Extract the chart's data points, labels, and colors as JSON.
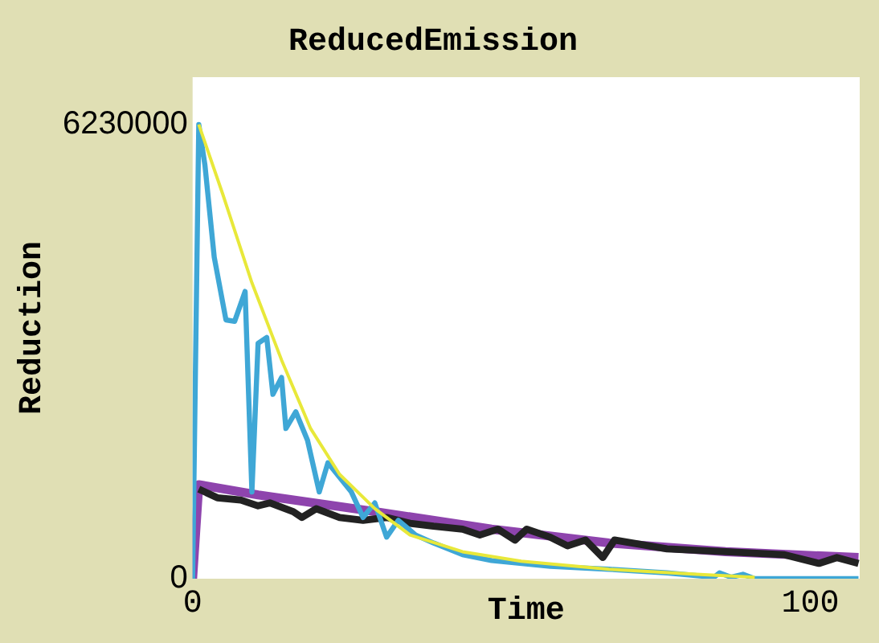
{
  "chart_data": {
    "type": "line",
    "title": "ReducedEmission",
    "xlabel": "Time",
    "ylabel": "Reduction",
    "xlim": [
      0,
      108
    ],
    "xticks": [
      0,
      100
    ],
    "ylim": [
      0,
      6880000
    ],
    "yticks": [
      0,
      6230000
    ],
    "grid": false,
    "legend": false,
    "marker": "none",
    "series": [
      {
        "color": "#e8e83a",
        "x": [
          1,
          4.9,
          9.6,
          14.4,
          19.1,
          23.8,
          29.5,
          35.2,
          43.7,
          53.2,
          67.4,
          81.6,
          91
        ],
        "values": [
          6230000,
          5270000,
          4060000,
          3000000,
          2060000,
          1430000,
          960000,
          600000,
          370000,
          240000,
          130000,
          60000,
          20000
        ]
      },
      {
        "color": "#3fa7d6",
        "x": [
          0,
          1,
          2,
          3.5,
          5.4,
          6.8,
          8.5,
          9.6,
          10.6,
          12,
          13,
          14.4,
          15.1,
          16.7,
          18.6,
          20.5,
          21.9,
          25.7,
          27.6,
          29.5,
          31.4,
          33.3,
          36.1,
          39,
          43.7,
          48.4,
          57.9,
          67.4,
          76.8,
          84.4,
          85.3,
          87.2,
          89.1,
          91,
          107.8
        ],
        "values": [
          0,
          6230000,
          5670000,
          4410000,
          3550000,
          3530000,
          3940000,
          1190000,
          3230000,
          3310000,
          2530000,
          2760000,
          2060000,
          2290000,
          1900000,
          1190000,
          1590000,
          1190000,
          840000,
          1040000,
          570000,
          800000,
          600000,
          490000,
          330000,
          250000,
          170000,
          130000,
          80000,
          20000,
          80000,
          20000,
          60000,
          0,
          0
        ]
      },
      {
        "color": "#222222",
        "x": [
          1,
          4,
          7.8,
          10.6,
          12.5,
          16.3,
          17.7,
          20,
          23.8,
          27.6,
          31.4,
          35.2,
          39,
          43.7,
          46.5,
          49.4,
          52.2,
          54.1,
          57.9,
          60.7,
          63.6,
          66.4,
          68.3,
          76.8,
          86.3,
          95.7,
          101.4,
          104.3,
          107.8
        ],
        "values": [
          1230000,
          1110000,
          1080000,
          1000000,
          1040000,
          920000,
          840000,
          960000,
          840000,
          800000,
          840000,
          760000,
          720000,
          680000,
          600000,
          680000,
          530000,
          680000,
          570000,
          450000,
          530000,
          290000,
          530000,
          410000,
          370000,
          330000,
          210000,
          290000,
          210000
        ]
      },
      {
        "color": "#8e44ad",
        "x": [
          0,
          1,
          10.6,
          29.5,
          48.4,
          67.4,
          86.3,
          107.8
        ],
        "values": [
          0,
          1290000,
          1150000,
          920000,
          680000,
          490000,
          370000,
          290000
        ]
      }
    ]
  }
}
